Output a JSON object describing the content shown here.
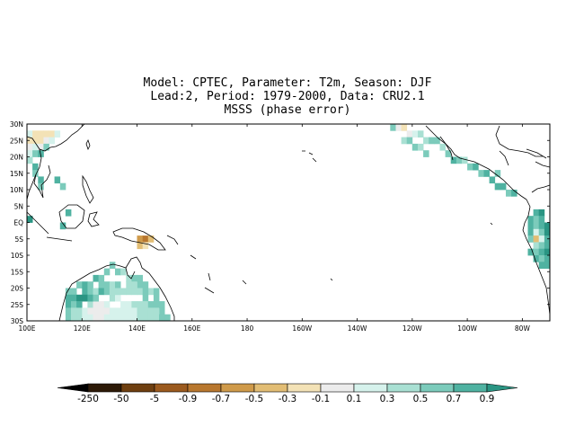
{
  "title": {
    "line1": "Model: CPTEC, Parameter: T2m, Season: DJF",
    "line2": "Lead:2, Period: 1979-2000, Data: CRU2.1",
    "line3": "MSSS (phase error)"
  },
  "map": {
    "lat_labels": [
      "30N",
      "25N",
      "20N",
      "15N",
      "10N",
      "5N",
      "EQ",
      "5S",
      "10S",
      "15S",
      "20S",
      "25S",
      "30S"
    ],
    "lat_values": [
      30,
      25,
      20,
      15,
      10,
      5,
      0,
      -5,
      -10,
      -15,
      -20,
      -25,
      -30
    ],
    "lon_labels": [
      "100E",
      "120E",
      "140E",
      "160E",
      "180",
      "160W",
      "140W",
      "120W",
      "100W",
      "80W"
    ],
    "lon_values": [
      100,
      120,
      140,
      160,
      180,
      200,
      220,
      240,
      260,
      280
    ],
    "lon_range": [
      100,
      290
    ],
    "lat_range": [
      -30,
      30
    ]
  },
  "colorbar": {
    "labels": [
      "-250",
      "-50",
      "-5",
      "-0.9",
      "-0.7",
      "-0.5",
      "-0.3",
      "-0.1",
      "0.1",
      "0.3",
      "0.5",
      "0.7",
      "0.9"
    ],
    "colors": [
      "#000000",
      "#2d1a08",
      "#6e3f10",
      "#9b5a1e",
      "#b8772e",
      "#cf9a4a",
      "#e2bd74",
      "#f3e2b6",
      "#ececec",
      "#d6f2ec",
      "#a9e0d3",
      "#7ccbbb",
      "#4fb2a1",
      "#2a9583"
    ]
  },
  "cells": [
    {
      "lon": 101,
      "lat": 27,
      "c": 9
    },
    {
      "lon": 103,
      "lat": 27,
      "c": 7
    },
    {
      "lon": 105,
      "lat": 27,
      "c": 7
    },
    {
      "lon": 107,
      "lat": 27,
      "c": 7
    },
    {
      "lon": 109,
      "lat": 27,
      "c": 7
    },
    {
      "lon": 111,
      "lat": 27,
      "c": 9
    },
    {
      "lon": 101,
      "lat": 25,
      "c": 7
    },
    {
      "lon": 103,
      "lat": 25,
      "c": 7
    },
    {
      "lon": 105,
      "lat": 25,
      "c": 7
    },
    {
      "lon": 107,
      "lat": 25,
      "c": 8
    },
    {
      "lon": 109,
      "lat": 25,
      "c": 9
    },
    {
      "lon": 101,
      "lat": 23,
      "c": 8
    },
    {
      "lon": 103,
      "lat": 23,
      "c": 9
    },
    {
      "lon": 105,
      "lat": 23,
      "c": 8
    },
    {
      "lon": 107,
      "lat": 23,
      "c": 11
    },
    {
      "lon": 101,
      "lat": 21,
      "c": 9
    },
    {
      "lon": 103,
      "lat": 21,
      "c": 11
    },
    {
      "lon": 105,
      "lat": 21,
      "c": 12
    },
    {
      "lon": 101,
      "lat": 19,
      "c": 10
    },
    {
      "lon": 103,
      "lat": 17,
      "c": 12
    },
    {
      "lon": 103,
      "lat": 15,
      "c": 11
    },
    {
      "lon": 105,
      "lat": 13,
      "c": 12
    },
    {
      "lon": 105,
      "lat": 11,
      "c": 11
    },
    {
      "lon": 111,
      "lat": 13,
      "c": 12
    },
    {
      "lon": 113,
      "lat": 11,
      "c": 11
    },
    {
      "lon": 101,
      "lat": 1,
      "c": 13
    },
    {
      "lon": 115,
      "lat": 3,
      "c": 12
    },
    {
      "lon": 113,
      "lat": -1,
      "c": 12
    },
    {
      "lon": 141,
      "lat": -5,
      "c": 5
    },
    {
      "lon": 143,
      "lat": -5,
      "c": 4
    },
    {
      "lon": 145,
      "lat": -5,
      "c": 6
    },
    {
      "lon": 141,
      "lat": -7,
      "c": 6
    },
    {
      "lon": 143,
      "lat": -7,
      "c": 7
    },
    {
      "lon": 115,
      "lat": -21,
      "c": 11
    },
    {
      "lon": 117,
      "lat": -21,
      "c": 11
    },
    {
      "lon": 119,
      "lat": -19,
      "c": 11
    },
    {
      "lon": 121,
      "lat": -19,
      "c": 12
    },
    {
      "lon": 123,
      "lat": -19,
      "c": 11
    },
    {
      "lon": 125,
      "lat": -17,
      "c": 12
    },
    {
      "lon": 127,
      "lat": -17,
      "c": 11
    },
    {
      "lon": 129,
      "lat": -15,
      "c": 11
    },
    {
      "lon": 131,
      "lat": -13,
      "c": 11
    },
    {
      "lon": 133,
      "lat": -15,
      "c": 11
    },
    {
      "lon": 135,
      "lat": -15,
      "c": 10
    },
    {
      "lon": 137,
      "lat": -17,
      "c": 10
    },
    {
      "lon": 139,
      "lat": -17,
      "c": 11
    },
    {
      "lon": 141,
      "lat": -19,
      "c": 11
    },
    {
      "lon": 143,
      "lat": -19,
      "c": 11
    },
    {
      "lon": 145,
      "lat": -21,
      "c": 10
    },
    {
      "lon": 147,
      "lat": -23,
      "c": 11
    },
    {
      "lon": 115,
      "lat": -23,
      "c": 12
    },
    {
      "lon": 117,
      "lat": -23,
      "c": 12
    },
    {
      "lon": 119,
      "lat": -23,
      "c": 13
    },
    {
      "lon": 121,
      "lat": -21,
      "c": 12
    },
    {
      "lon": 123,
      "lat": -21,
      "c": 11
    },
    {
      "lon": 125,
      "lat": -21,
      "c": 10
    },
    {
      "lon": 127,
      "lat": -19,
      "c": 11
    },
    {
      "lon": 129,
      "lat": -19,
      "c": 11
    },
    {
      "lon": 131,
      "lat": -19,
      "c": 10
    },
    {
      "lon": 133,
      "lat": -19,
      "c": 11
    },
    {
      "lon": 135,
      "lat": -21,
      "c": 10
    },
    {
      "lon": 137,
      "lat": -21,
      "c": 10
    },
    {
      "lon": 139,
      "lat": -21,
      "c": 10
    },
    {
      "lon": 141,
      "lat": -21,
      "c": 10
    },
    {
      "lon": 143,
      "lat": -23,
      "c": 11
    },
    {
      "lon": 115,
      "lat": -25,
      "c": 12
    },
    {
      "lon": 117,
      "lat": -25,
      "c": 11
    },
    {
      "lon": 119,
      "lat": -25,
      "c": 12
    },
    {
      "lon": 121,
      "lat": -23,
      "c": 13
    },
    {
      "lon": 123,
      "lat": -25,
      "c": 10
    },
    {
      "lon": 125,
      "lat": -25,
      "c": 8
    },
    {
      "lon": 127,
      "lat": -25,
      "c": 8
    },
    {
      "lon": 129,
      "lat": -25,
      "c": 9
    },
    {
      "lon": 131,
      "lat": -23,
      "c": 10
    },
    {
      "lon": 133,
      "lat": -23,
      "c": 9
    },
    {
      "lon": 135,
      "lat": -25,
      "c": 9
    },
    {
      "lon": 137,
      "lat": -25,
      "c": 9
    },
    {
      "lon": 139,
      "lat": -25,
      "c": 10
    },
    {
      "lon": 141,
      "lat": -25,
      "c": 10
    },
    {
      "lon": 143,
      "lat": -25,
      "c": 10
    },
    {
      "lon": 145,
      "lat": -25,
      "c": 11
    },
    {
      "lon": 147,
      "lat": -25,
      "c": 11
    },
    {
      "lon": 149,
      "lat": -27,
      "c": 11
    },
    {
      "lon": 115,
      "lat": -27,
      "c": 11
    },
    {
      "lon": 117,
      "lat": -27,
      "c": 10
    },
    {
      "lon": 119,
      "lat": -27,
      "c": 10
    },
    {
      "lon": 121,
      "lat": -27,
      "c": 9
    },
    {
      "lon": 123,
      "lat": -27,
      "c": 8
    },
    {
      "lon": 125,
      "lat": -27,
      "c": 8
    },
    {
      "lon": 127,
      "lat": -27,
      "c": 8
    },
    {
      "lon": 129,
      "lat": -27,
      "c": 8
    },
    {
      "lon": 131,
      "lat": -27,
      "c": 9
    },
    {
      "lon": 133,
      "lat": -27,
      "c": 9
    },
    {
      "lon": 135,
      "lat": -27,
      "c": 9
    },
    {
      "lon": 137,
      "lat": -27,
      "c": 9
    },
    {
      "lon": 139,
      "lat": -27,
      "c": 9
    },
    {
      "lon": 141,
      "lat": -27,
      "c": 10
    },
    {
      "lon": 143,
      "lat": -27,
      "c": 10
    },
    {
      "lon": 145,
      "lat": -27,
      "c": 10
    },
    {
      "lon": 147,
      "lat": -27,
      "c": 10
    },
    {
      "lon": 115,
      "lat": -29,
      "c": 11
    },
    {
      "lon": 117,
      "lat": -29,
      "c": 10
    },
    {
      "lon": 119,
      "lat": -29,
      "c": 10
    },
    {
      "lon": 121,
      "lat": -29,
      "c": 9
    },
    {
      "lon": 123,
      "lat": -29,
      "c": 9
    },
    {
      "lon": 125,
      "lat": -29,
      "c": 8
    },
    {
      "lon": 127,
      "lat": -29,
      "c": 8
    },
    {
      "lon": 129,
      "lat": -29,
      "c": 9
    },
    {
      "lon": 131,
      "lat": -29,
      "c": 9
    },
    {
      "lon": 133,
      "lat": -29,
      "c": 9
    },
    {
      "lon": 135,
      "lat": -29,
      "c": 9
    },
    {
      "lon": 137,
      "lat": -29,
      "c": 9
    },
    {
      "lon": 139,
      "lat": -29,
      "c": 9
    },
    {
      "lon": 141,
      "lat": -29,
      "c": 10
    },
    {
      "lon": 143,
      "lat": -29,
      "c": 10
    },
    {
      "lon": 145,
      "lat": -29,
      "c": 10
    },
    {
      "lon": 147,
      "lat": -29,
      "c": 10
    },
    {
      "lon": 149,
      "lat": -29,
      "c": 11
    },
    {
      "lon": 151,
      "lat": -29,
      "c": 11
    },
    {
      "lon": 123,
      "lat": -23,
      "c": 12
    },
    {
      "lon": 125,
      "lat": -23,
      "c": 11
    },
    {
      "lon": 127,
      "lat": -21,
      "c": 12
    },
    {
      "lon": 129,
      "lat": -21,
      "c": 11
    },
    {
      "lon": 131,
      "lat": -21,
      "c": 10
    },
    {
      "lon": 133,
      "lat": -21,
      "c": 10
    },
    {
      "lon": 137,
      "lat": -19,
      "c": 10
    },
    {
      "lon": 139,
      "lat": -19,
      "c": 10
    },
    {
      "lon": 141,
      "lat": -17,
      "c": 11
    },
    {
      "lon": 143,
      "lat": -21,
      "c": 11
    },
    {
      "lon": 147,
      "lat": -21,
      "c": 11
    },
    {
      "lon": 149,
      "lat": -25,
      "c": 11
    },
    {
      "lon": 233,
      "lat": 29,
      "c": 11
    },
    {
      "lon": 235,
      "lat": 29,
      "c": 8
    },
    {
      "lon": 237,
      "lat": 29,
      "c": 7
    },
    {
      "lon": 239,
      "lat": 27,
      "c": 8
    },
    {
      "lon": 241,
      "lat": 27,
      "c": 9
    },
    {
      "lon": 243,
      "lat": 27,
      "c": 10
    },
    {
      "lon": 245,
      "lat": 25,
      "c": 10
    },
    {
      "lon": 247,
      "lat": 25,
      "c": 11
    },
    {
      "lon": 249,
      "lat": 25,
      "c": 11
    },
    {
      "lon": 251,
      "lat": 23,
      "c": 10
    },
    {
      "lon": 253,
      "lat": 21,
      "c": 11
    },
    {
      "lon": 255,
      "lat": 19,
      "c": 12
    },
    {
      "lon": 257,
      "lat": 19,
      "c": 11
    },
    {
      "lon": 259,
      "lat": 19,
      "c": 10
    },
    {
      "lon": 261,
      "lat": 17,
      "c": 11
    },
    {
      "lon": 263,
      "lat": 17,
      "c": 12
    },
    {
      "lon": 265,
      "lat": 15,
      "c": 11
    },
    {
      "lon": 267,
      "lat": 15,
      "c": 12
    },
    {
      "lon": 269,
      "lat": 13,
      "c": 12
    },
    {
      "lon": 271,
      "lat": 15,
      "c": 11
    },
    {
      "lon": 271,
      "lat": 11,
      "c": 12
    },
    {
      "lon": 273,
      "lat": 11,
      "c": 12
    },
    {
      "lon": 275,
      "lat": 9,
      "c": 11
    },
    {
      "lon": 277,
      "lat": 9,
      "c": 12
    },
    {
      "lon": 237,
      "lat": 25,
      "c": 10
    },
    {
      "lon": 239,
      "lat": 25,
      "c": 11
    },
    {
      "lon": 241,
      "lat": 23,
      "c": 11
    },
    {
      "lon": 243,
      "lat": 23,
      "c": 10
    },
    {
      "lon": 245,
      "lat": 21,
      "c": 11
    },
    {
      "lon": 285,
      "lat": 3,
      "c": 12
    },
    {
      "lon": 287,
      "lat": 3,
      "c": 13
    },
    {
      "lon": 283,
      "lat": 1,
      "c": 12
    },
    {
      "lon": 285,
      "lat": 1,
      "c": 11
    },
    {
      "lon": 287,
      "lat": 1,
      "c": 12
    },
    {
      "lon": 283,
      "lat": -1,
      "c": 12
    },
    {
      "lon": 285,
      "lat": -1,
      "c": 11
    },
    {
      "lon": 287,
      "lat": -1,
      "c": 12
    },
    {
      "lon": 289,
      "lat": -1,
      "c": 13
    },
    {
      "lon": 283,
      "lat": -3,
      "c": 12
    },
    {
      "lon": 285,
      "lat": -3,
      "c": 9
    },
    {
      "lon": 287,
      "lat": -3,
      "c": 11
    },
    {
      "lon": 289,
      "lat": -3,
      "c": 13
    },
    {
      "lon": 283,
      "lat": -5,
      "c": 11
    },
    {
      "lon": 285,
      "lat": -5,
      "c": 6
    },
    {
      "lon": 287,
      "lat": -5,
      "c": 9
    },
    {
      "lon": 289,
      "lat": -5,
      "c": 12
    },
    {
      "lon": 285,
      "lat": -7,
      "c": 10
    },
    {
      "lon": 287,
      "lat": -7,
      "c": 11
    },
    {
      "lon": 289,
      "lat": -7,
      "c": 12
    },
    {
      "lon": 283,
      "lat": -9,
      "c": 12
    },
    {
      "lon": 285,
      "lat": -9,
      "c": 11
    },
    {
      "lon": 287,
      "lat": -9,
      "c": 12
    },
    {
      "lon": 285,
      "lat": -11,
      "c": 12
    },
    {
      "lon": 287,
      "lat": -11,
      "c": 11
    },
    {
      "lon": 287,
      "lat": -13,
      "c": 12
    },
    {
      "lon": 289,
      "lat": -13,
      "c": 12
    },
    {
      "lon": 289,
      "lat": -9,
      "c": 13
    },
    {
      "lon": 289,
      "lat": -11,
      "c": 12
    }
  ]
}
